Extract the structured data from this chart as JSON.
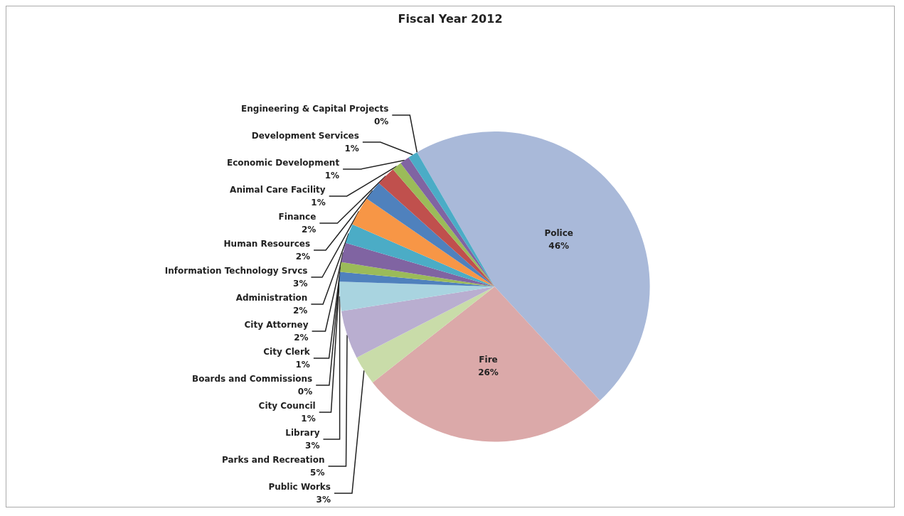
{
  "chart_data": {
    "type": "pie",
    "title": "Fiscal Year 2012",
    "categories": [
      "Police",
      "Fire",
      "Public Works",
      "Parks and Recreation",
      "Library",
      "City Council",
      "Boards and Commissions",
      "City Clerk",
      "City Attorney",
      "Administration",
      "Information Technology Srvcs",
      "Human Resources",
      "Finance",
      "Animal Care Facility",
      "Economic Development",
      "Development Services",
      "Engineering & Capital Projects"
    ],
    "values": [
      46,
      26,
      3,
      5,
      3,
      1,
      0,
      1,
      2,
      2,
      3,
      2,
      2,
      1,
      1,
      1,
      0
    ],
    "colors": [
      "#a9b9d9",
      "#dba9a9",
      "#c9dca9",
      "#b9aed0",
      "#a9d4e0",
      "#4f81bd",
      "#c0504d",
      "#9bbb59",
      "#8064a2",
      "#4bacc6",
      "#f79646",
      "#4f81bd",
      "#c0504d",
      "#9bbb59",
      "#8064a2",
      "#4bacc6",
      "#f79646"
    ],
    "value_labels": [
      "46%",
      "26%",
      "3%",
      "5%",
      "3%",
      "1%",
      "0%",
      "1%",
      "2%",
      "2%",
      "3%",
      "2%",
      "2%",
      "1%",
      "1%",
      "1%",
      "0%"
    ],
    "legend": false
  }
}
